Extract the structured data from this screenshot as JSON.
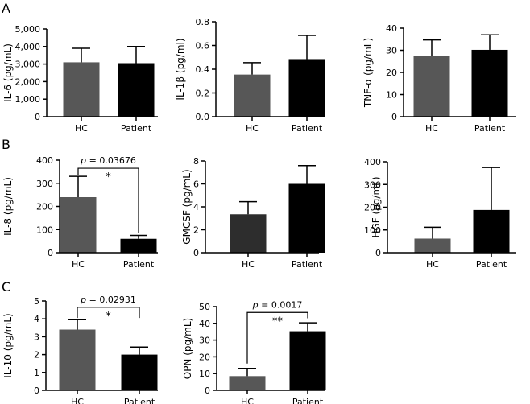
{
  "figure": {
    "panel_labels": [
      "A",
      "B",
      "C"
    ]
  },
  "colors": {
    "hc": "#575757",
    "patient": "#000000",
    "gmcsf_hc": "#2d2d2d"
  },
  "chart_data": [
    {
      "id": "il6",
      "panel": "A",
      "type": "bar",
      "ylabel": "IL-6 (pg/mL)",
      "categories": [
        "HC",
        "Patient"
      ],
      "values": [
        3100,
        3050
      ],
      "errors": [
        800,
        950
      ],
      "ylim": [
        0,
        5000
      ],
      "yticks": [
        0,
        1000,
        2000,
        3000,
        4000,
        5000
      ],
      "ytick_labels": [
        "0",
        "1,000",
        "2,000",
        "3,000",
        "4,000",
        "5,000"
      ]
    },
    {
      "id": "il1b",
      "panel": "A",
      "type": "bar",
      "ylabel": "IL-1β (pg/ml)",
      "categories": [
        "HC",
        "Patient"
      ],
      "values": [
        0.355,
        0.485
      ],
      "errors": [
        0.1,
        0.2
      ],
      "ylim": [
        0,
        0.8
      ],
      "yticks": [
        0,
        0.2,
        0.4,
        0.6,
        0.8
      ],
      "ytick_labels": [
        "0.0",
        "0.2",
        "0.4",
        "0.6",
        "0.8"
      ]
    },
    {
      "id": "tnfa",
      "panel": "A",
      "type": "bar",
      "ylabel": "TNF-α (pg/mL)",
      "categories": [
        "HC",
        "Patient"
      ],
      "values": [
        27.3,
        30.2
      ],
      "errors": [
        7.4,
        6.8
      ],
      "ylim": [
        0,
        40
      ],
      "yticks": [
        0,
        10,
        20,
        30,
        40
      ],
      "ytick_labels": [
        "0",
        "10",
        "20",
        "30",
        "40"
      ]
    },
    {
      "id": "il8",
      "panel": "B",
      "type": "bar",
      "ylabel": "IL-8 (pg/mL)",
      "categories": [
        "HC",
        "Patient"
      ],
      "values": [
        240,
        60
      ],
      "errors": [
        90,
        15
      ],
      "ylim": [
        0,
        400
      ],
      "yticks": [
        0,
        100,
        200,
        300,
        400
      ],
      "ytick_labels": [
        "0",
        "100",
        "200",
        "300",
        "400"
      ],
      "significance": {
        "p_prefix": "p",
        "p_value": "= 0.03676",
        "stars": "*",
        "bracket_y": 365,
        "left_end_y": 335,
        "right_end_y": 85
      }
    },
    {
      "id": "gmcsf",
      "panel": "B",
      "type": "bar",
      "ylabel": "GMCSF (pg/mL)",
      "categories": [
        "HC",
        "Patient"
      ],
      "values": [
        3.35,
        6.0
      ],
      "errors": [
        1.1,
        1.6
      ],
      "ylim": [
        0,
        8
      ],
      "yticks": [
        0,
        2,
        4,
        6,
        8
      ],
      "ytick_labels": [
        "0",
        "2",
        "4",
        "6",
        "8"
      ]
    },
    {
      "id": "hgf",
      "panel": "B",
      "type": "bar",
      "ylabel": "HGF (pg/mL)",
      "categories": [
        "HC",
        "Patient"
      ],
      "values": [
        62,
        188
      ],
      "errors": [
        50,
        187
      ],
      "ylim": [
        0,
        400
      ],
      "yticks": [
        0,
        100,
        200,
        300,
        400
      ],
      "ytick_labels": [
        "0",
        "100",
        "200",
        "300",
        "400"
      ]
    },
    {
      "id": "il10",
      "panel": "C",
      "type": "bar",
      "ylabel": "IL-10 (pg/mL)",
      "categories": [
        "HC",
        "Patient"
      ],
      "values": [
        3.4,
        2.0
      ],
      "errors": [
        0.55,
        0.42
      ],
      "ylim": [
        0,
        5
      ],
      "yticks": [
        0,
        1,
        2,
        3,
        4,
        5
      ],
      "ytick_labels": [
        "0",
        "1",
        "2",
        "3",
        "4",
        "5"
      ],
      "significance": {
        "p_prefix": "p",
        "p_value": "= 0.02931",
        "stars": "*",
        "bracket_y": 4.65,
        "left_end_y": 4.05,
        "right_end_y": 4.05
      }
    },
    {
      "id": "opn",
      "panel": "C",
      "type": "bar",
      "ylabel": "OPN (pg/mL)",
      "categories": [
        "HC",
        "Patient"
      ],
      "values": [
        8.5,
        35.3
      ],
      "errors": [
        4.6,
        5.0
      ],
      "ylim": [
        0,
        50
      ],
      "yticks": [
        0,
        10,
        20,
        30,
        40,
        50
      ],
      "ytick_labels": [
        "0",
        "10",
        "20",
        "30",
        "40",
        "50"
      ],
      "significance": {
        "p_prefix": "p",
        "p_value": "= 0.0017",
        "stars": "**",
        "bracket_y": 46.5,
        "left_end_y": 16,
        "right_end_y": 43
      }
    }
  ]
}
